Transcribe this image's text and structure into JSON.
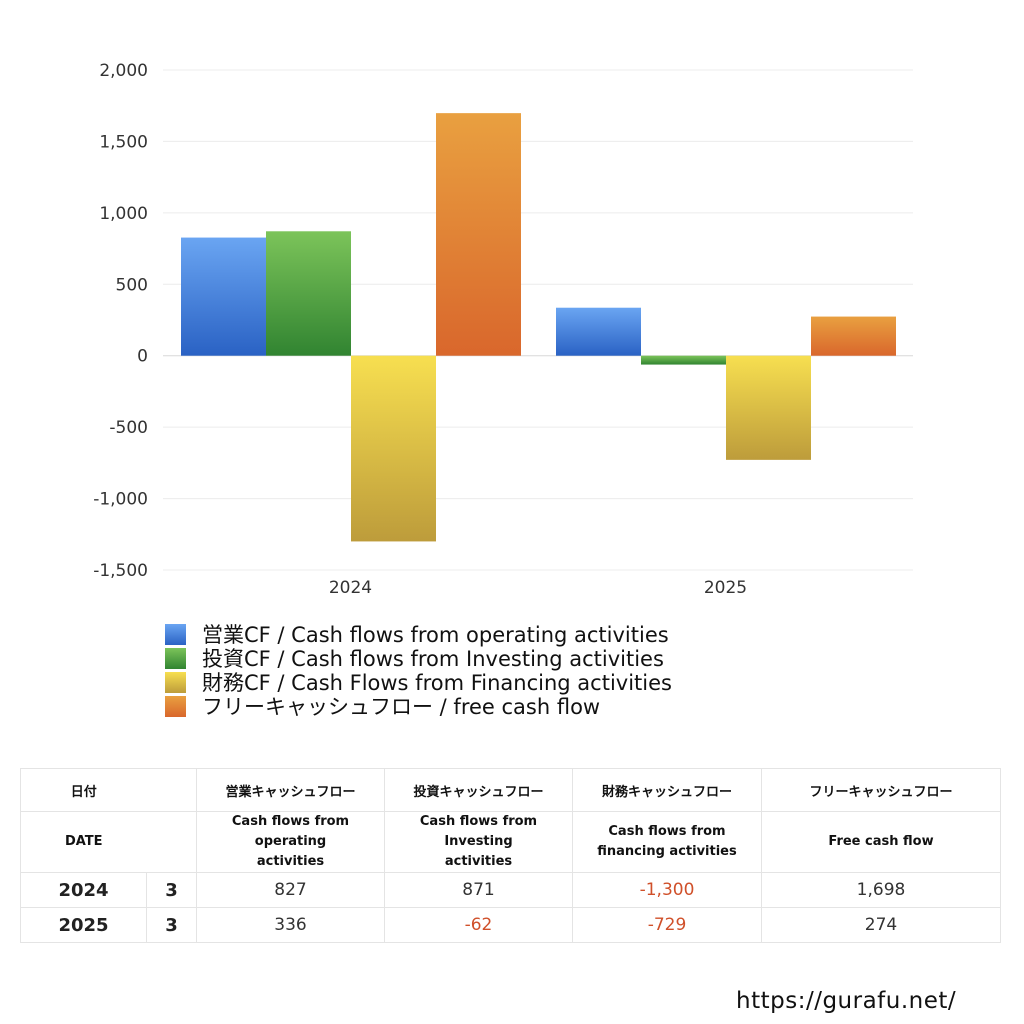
{
  "chart_data": {
    "type": "bar",
    "categories": [
      "2024",
      "2025"
    ],
    "ylim": [
      -1500,
      2000
    ],
    "yticks": [
      2000,
      1500,
      1000,
      500,
      0,
      -500,
      -1000,
      -1500
    ],
    "ytick_labels": [
      "2,000",
      "1,500",
      "1,000",
      "500",
      "0",
      "-500",
      "-1,000",
      "-1,500"
    ],
    "grid": true,
    "legend_position": "bottom",
    "series": [
      {
        "name": "営業CF / Cash flows from operating activities",
        "values": [
          827,
          336
        ],
        "color": "#3f7fdf"
      },
      {
        "name": "投資CF / Cash flows from Investing activities",
        "values": [
          871,
          -62
        ],
        "color": "#4aa040"
      },
      {
        "name": "財務CF / Cash Flows from Financing activities",
        "values": [
          -1300,
          -729
        ],
        "color": "#e8cc4a"
      },
      {
        "name": "フリーキャッシュフロー / free cash flow",
        "values": [
          1698,
          274
        ],
        "color": "#e07d30"
      }
    ]
  },
  "table": {
    "h1": {
      "date": "日付",
      "op": "営業キャッシュフロー",
      "inv": "投資キャッシュフロー",
      "fin": "財務キャッシュフロー",
      "free": "フリーキャッシュフロー"
    },
    "h2": {
      "date": "DATE",
      "op": "Cash flows from operating activities",
      "inv": "Cash flows from Investing activities",
      "fin": "Cash flows from financing activities",
      "free": "Free cash flow"
    },
    "rows": [
      {
        "year": "2024",
        "month": "3",
        "op": "827",
        "inv": "871",
        "fin": "-1,300",
        "free": "1,698"
      },
      {
        "year": "2025",
        "month": "3",
        "op": "336",
        "inv": "-62",
        "fin": "-729",
        "free": "274"
      }
    ]
  },
  "watermark": "https://gurafu.net/"
}
